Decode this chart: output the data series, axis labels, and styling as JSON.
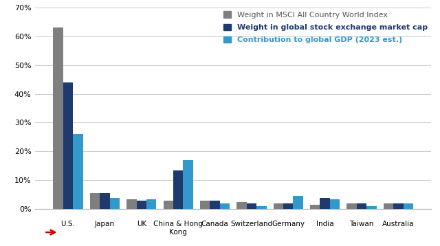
{
  "categories": [
    "U.S.",
    "Japan",
    "UK",
    "China & Hong\nKong",
    "Canada",
    "Switzerland",
    "Germany",
    "India",
    "Taiwan",
    "Australia"
  ],
  "msci": [
    63,
    5.5,
    3.5,
    3.0,
    3.0,
    2.5,
    2.0,
    1.5,
    2.0,
    2.0
  ],
  "market_cap": [
    44,
    5.5,
    3.0,
    13.5,
    3.0,
    2.0,
    2.0,
    4.0,
    2.0,
    2.0
  ],
  "gdp": [
    26,
    4.0,
    3.5,
    17.0,
    2.0,
    1.0,
    4.5,
    3.5,
    1.0,
    2.0
  ],
  "color_msci": "#7f7f7f",
  "color_market_cap": "#1f3a6e",
  "color_gdp": "#3399cc",
  "legend_msci": "Weight in MSCI All Country World Index",
  "legend_market_cap": "Weight in global stock exchange market cap",
  "legend_gdp": "Contribution to global GDP (2023 est.)",
  "ylim": [
    0,
    70
  ],
  "yticks": [
    0,
    10,
    20,
    30,
    40,
    50,
    60,
    70
  ],
  "ytick_labels": [
    "0%",
    "10%",
    "20%",
    "30%",
    "40%",
    "50%",
    "60%",
    "70%"
  ],
  "background_color": "#ffffff",
  "grid_color": "#cccccc",
  "arrow_color": "#cc0000"
}
